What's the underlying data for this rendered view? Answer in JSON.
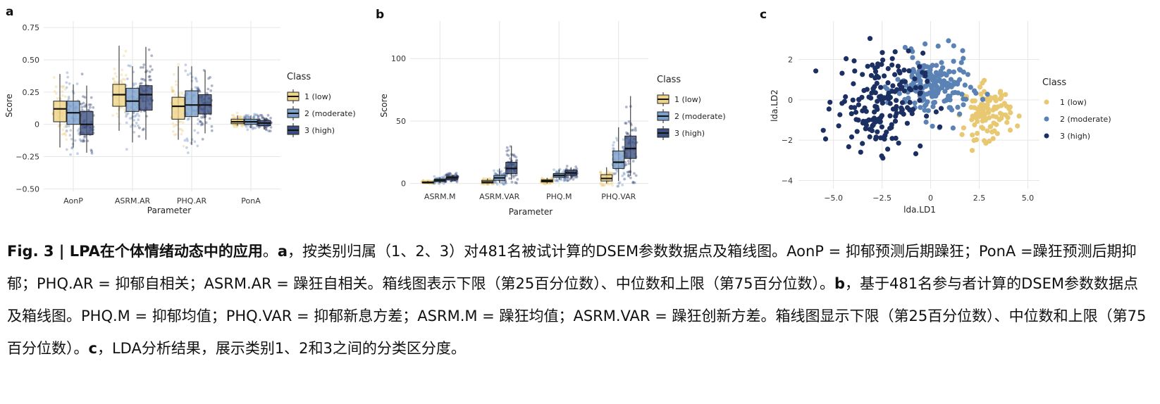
{
  "colors": {
    "class1": "#E8C870",
    "class2": "#5B82B5",
    "class3": "#1C2F63",
    "box1": "#EFD48A",
    "box2": "#7CA0CC",
    "box3": "#3C4F80",
    "grid": "#E6E6E6"
  },
  "chart_data": [
    {
      "panel": "a",
      "type": "boxplot",
      "xlabel": "Parameter",
      "ylabel": "Score",
      "categories": [
        "AonP",
        "ASRM.AR",
        "PHQ.AR",
        "PonA"
      ],
      "ylim": [
        -0.52,
        0.8
      ],
      "yticks": [
        -0.5,
        -0.25,
        0,
        0.25,
        0.5,
        0.75
      ],
      "yticklabels": [
        "−0.50",
        "−0.25",
        "0",
        "0.25",
        "0.50",
        "0.75"
      ],
      "legend": {
        "title": "Class",
        "position": "right",
        "entries": [
          "1 (low)",
          "2 (moderate)",
          "3 (high)"
        ]
      },
      "series": [
        {
          "class": 1,
          "boxes": [
            {
              "q1": 0.02,
              "median": 0.12,
              "q3": 0.18,
              "min": -0.18,
              "max": 0.39
            },
            {
              "q1": 0.14,
              "median": 0.23,
              "q3": 0.31,
              "min": -0.05,
              "max": 0.61
            },
            {
              "q1": 0.04,
              "median": 0.14,
              "q3": 0.21,
              "min": -0.12,
              "max": 0.45
            },
            {
              "q1": 0.005,
              "median": 0.02,
              "q3": 0.04,
              "min": -0.01,
              "max": 0.07
            }
          ]
        },
        {
          "class": 2,
          "boxes": [
            {
              "q1": 0.0,
              "median": 0.09,
              "q3": 0.18,
              "min": -0.18,
              "max": 0.31
            },
            {
              "q1": 0.1,
              "median": 0.18,
              "q3": 0.28,
              "min": -0.14,
              "max": 0.45
            },
            {
              "q1": 0.06,
              "median": 0.15,
              "q3": 0.26,
              "min": -0.16,
              "max": 0.45
            },
            {
              "q1": 0.0,
              "median": 0.02,
              "q3": 0.04,
              "min": -0.03,
              "max": 0.07
            }
          ]
        },
        {
          "class": 3,
          "boxes": [
            {
              "q1": -0.08,
              "median": 0.0,
              "q3": 0.1,
              "min": -0.22,
              "max": 0.3
            },
            {
              "q1": 0.11,
              "median": 0.23,
              "q3": 0.3,
              "min": -0.12,
              "max": 0.6
            },
            {
              "q1": 0.08,
              "median": 0.15,
              "q3": 0.23,
              "min": -0.07,
              "max": 0.42
            },
            {
              "q1": -0.01,
              "median": 0.01,
              "q3": 0.03,
              "min": -0.04,
              "max": 0.05
            }
          ]
        }
      ]
    },
    {
      "panel": "b",
      "type": "boxplot",
      "xlabel": "Parameter",
      "ylabel": "Score",
      "categories": [
        "ASRM.M",
        "ASRM.VAR",
        "PHQ.M",
        "PHQ.VAR"
      ],
      "ylim": [
        -3,
        130
      ],
      "yticks": [
        0,
        50,
        100
      ],
      "yticklabels": [
        "0",
        "50",
        "100"
      ],
      "legend": {
        "title": "Class",
        "position": "right",
        "entries": [
          "1 (low)",
          "2 (moderate)",
          "3 (high)"
        ]
      },
      "series": [
        {
          "class": 1,
          "boxes": [
            {
              "q1": 0.3,
              "median": 0.8,
              "q3": 1.3,
              "min": 0,
              "max": 2
            },
            {
              "q1": 0.3,
              "median": 1.2,
              "q3": 2.5,
              "min": 0,
              "max": 4
            },
            {
              "q1": 1.2,
              "median": 2.0,
              "q3": 3.0,
              "min": 0,
              "max": 4.5
            },
            {
              "q1": 2.0,
              "median": 4.0,
              "q3": 7.0,
              "min": 0,
              "max": 13
            }
          ]
        },
        {
          "class": 2,
          "boxes": [
            {
              "q1": 1.5,
              "median": 2.5,
              "q3": 3.5,
              "min": 0.5,
              "max": 5
            },
            {
              "q1": 2.5,
              "median": 4.5,
              "q3": 6.5,
              "min": 0.5,
              "max": 12
            },
            {
              "q1": 5.0,
              "median": 6.5,
              "q3": 8.0,
              "min": 3,
              "max": 11
            },
            {
              "q1": 12.0,
              "median": 17.0,
              "q3": 26.0,
              "min": 2,
              "max": 45
            }
          ]
        },
        {
          "class": 3,
          "boxes": [
            {
              "q1": 3.0,
              "median": 4.5,
              "q3": 5.5,
              "min": 2,
              "max": 7
            },
            {
              "q1": 8.0,
              "median": 12.0,
              "q3": 17.0,
              "min": 3,
              "max": 30
            },
            {
              "q1": 6.5,
              "median": 8.5,
              "q3": 10.5,
              "min": 3.5,
              "max": 13
            },
            {
              "q1": 20.0,
              "median": 28.0,
              "q3": 38.0,
              "min": 6,
              "max": 70
            }
          ]
        }
      ]
    },
    {
      "panel": "c",
      "type": "scatter",
      "xlabel": "lda.LD1",
      "ylabel": "lda.LD2",
      "xlim": [
        -6.8,
        5.6
      ],
      "ylim": [
        -4.4,
        3.9
      ],
      "xticks": [
        -5,
        -2.5,
        0,
        2.5,
        5
      ],
      "xticklabels": [
        "−5.0",
        "−2.5",
        "0",
        "2.5",
        "5.0"
      ],
      "yticks": [
        -4,
        -2,
        0,
        2
      ],
      "yticklabels": [
        "−4",
        "−2",
        "0",
        "2"
      ],
      "legend": {
        "title": "Class",
        "position": "right",
        "entries": [
          "1 (low)",
          "2 (moderate)",
          "3 (high)"
        ]
      },
      "clusters": [
        {
          "class": 1,
          "center_x": 2.9,
          "center_y": -0.6,
          "spread_x": 0.6,
          "spread_y": 0.65,
          "n": 110
        },
        {
          "class": 2,
          "center_x": 0.1,
          "center_y": 0.6,
          "spread_x": 0.95,
          "spread_y": 0.8,
          "n": 190
        },
        {
          "class": 3,
          "center_x": -2.6,
          "center_y": -0.1,
          "spread_x": 1.1,
          "spread_y": 1.2,
          "n": 181
        }
      ]
    }
  ],
  "panel_letters": {
    "a": "a",
    "b": "b",
    "c": "c"
  },
  "caption": {
    "fig_label": "Fig. 3 | LPA在个体情绪动态中的应用",
    "period": "。",
    "a_label": "a",
    "a_text": "，按类别归属（1、2、3）对481名被试计算的DSEM参数数据点及箱线图。AonP = 抑郁预测后期躁狂；PonA =躁狂预测后期抑郁；PHQ.AR = 抑郁自相关；ASRM.AR = 躁狂自相关。箱线图表示下限（第25百分位数）、中位数和上限（第75百分位数）。",
    "b_label": "b",
    "b_text": "，基于481名参与者计算的DSEM参数数据点及箱线图。PHQ.M = 抑郁均值；PHQ.VAR = 抑郁新息方差；ASRM.M = 躁狂均值；ASRM.VAR = 躁狂创新方差。箱线图显示下限（第25百分位数）、中位数和上限（第75百分位数）。",
    "c_label": "c",
    "c_text": "，LDA分析结果，展示类别1、2和3之间的分类区分度。"
  }
}
